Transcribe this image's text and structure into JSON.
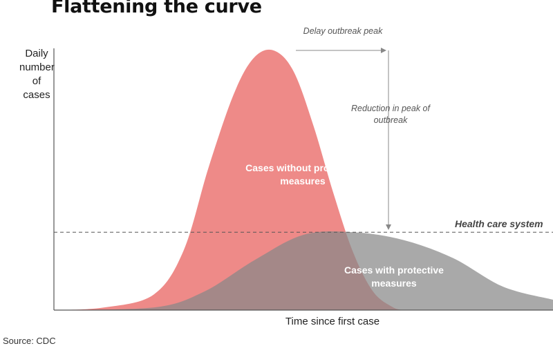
{
  "title": "Flattening the curve",
  "source": "Source: CDC",
  "chart_data": {
    "type": "area",
    "title": "Flattening the curve",
    "xlabel": "Time since first case",
    "ylabel": "Daily number of cases",
    "xlim": [
      0,
      1
    ],
    "ylim": [
      0,
      1
    ],
    "grid": false,
    "x_ticks": false,
    "y_ticks": false,
    "series": [
      {
        "label": "Cases without protective measures",
        "color": "#ee8a88",
        "x": [
          0,
          0.1,
          0.2,
          0.26,
          0.31,
          0.36,
          0.4,
          0.44,
          0.48,
          0.52,
          0.56,
          0.6,
          0.64,
          0.68,
          0.7
        ],
        "y": [
          0,
          0.01,
          0.06,
          0.23,
          0.55,
          0.83,
          0.97,
          1.0,
          0.92,
          0.71,
          0.45,
          0.22,
          0.07,
          0.01,
          0
        ]
      },
      {
        "label": "Cases with protective measures",
        "color": "#999999",
        "x": [
          0,
          0.2,
          0.3,
          0.4,
          0.5,
          0.6,
          0.7,
          0.8,
          0.9,
          1.0
        ],
        "y": [
          0,
          0.01,
          0.07,
          0.19,
          0.29,
          0.3,
          0.27,
          0.2,
          0.09,
          0.04
        ]
      }
    ],
    "reference_line": {
      "label": "Health care system",
      "y": 0.3,
      "style": "dashed"
    },
    "annotations": [
      {
        "text": "Delay outbreak peak"
      },
      {
        "text": "Reduction in peak of outbreak"
      }
    ]
  }
}
